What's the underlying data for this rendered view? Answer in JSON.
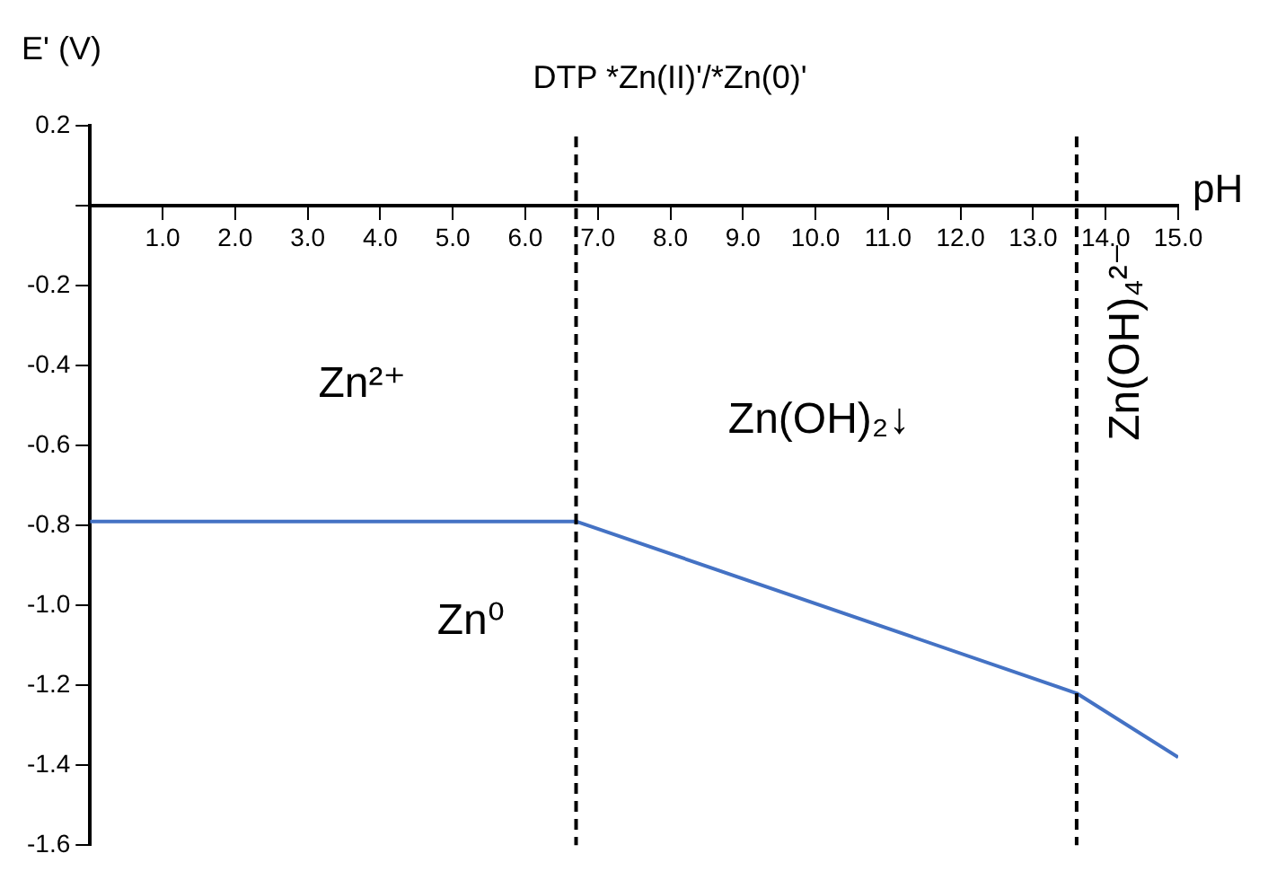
{
  "chart_data": {
    "type": "line",
    "title": "DTP *Zn(II)'/*Zn(0)'",
    "xlabel": "pH",
    "ylabel": "E' (V)",
    "x": [
      0,
      6.7,
      13.6,
      15
    ],
    "series": [
      {
        "color": "#4472c4",
        "values": [
          -0.79,
          -0.79,
          -1.22,
          -1.38
        ]
      }
    ],
    "xlim": [
      0,
      15
    ],
    "xticks": [
      {
        "value": 1,
        "label": "1.0"
      },
      {
        "value": 2,
        "label": "2.0"
      },
      {
        "value": 3,
        "label": "3.0"
      },
      {
        "value": 4,
        "label": "4.0"
      },
      {
        "value": 5,
        "label": "5.0"
      },
      {
        "value": 6,
        "label": "6.0"
      },
      {
        "value": 7,
        "label": "7.0"
      },
      {
        "value": 8,
        "label": "8.0"
      },
      {
        "value": 9,
        "label": "9.0"
      },
      {
        "value": 10,
        "label": "10.0"
      },
      {
        "value": 11,
        "label": "11.0"
      },
      {
        "value": 12,
        "label": "12.0"
      },
      {
        "value": 13,
        "label": "13.0"
      },
      {
        "value": 14,
        "label": "14.0"
      },
      {
        "value": 15,
        "label": "15.0"
      }
    ],
    "ylim": [
      -1.6,
      0.2
    ],
    "yticks": [
      {
        "value": -1.6,
        "label": "-1.6"
      },
      {
        "value": -1.4,
        "label": "-1.4"
      },
      {
        "value": -1.2,
        "label": "-1.2"
      },
      {
        "value": -1,
        "label": "-1.0"
      },
      {
        "value": -0.8,
        "label": "-0.8"
      },
      {
        "value": -0.6,
        "label": "-0.6"
      },
      {
        "value": -0.4,
        "label": "-0.4"
      },
      {
        "value": -0.2,
        "label": "-0.2"
      },
      {
        "value": 0,
        "label": null
      },
      {
        "value": 0.2,
        "label": "0.2"
      }
    ],
    "ref_lines": [
      {
        "axis": "x",
        "value": 6.7,
        "color": "#000000",
        "line_style": "dashed"
      },
      {
        "axis": "x",
        "value": 13.6,
        "color": "#000000",
        "line_style": "dashed"
      }
    ],
    "annotations": [
      "Zn²⁺",
      "Zn(OH)₂↓",
      "Zn(OH)₄²⁻",
      "Zn⁰"
    ],
    "grid": false,
    "legend": false,
    "marker": "none",
    "line_style": "solid"
  }
}
